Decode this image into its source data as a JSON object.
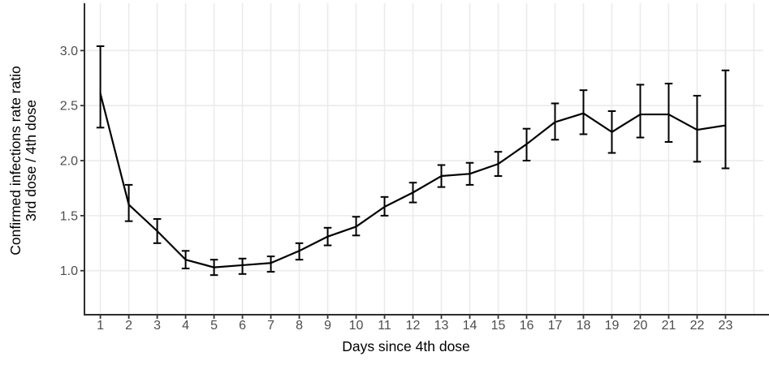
{
  "chart_data": {
    "type": "line",
    "title": "",
    "xlabel": "Days since 4th dose",
    "ylabel_lines": [
      "Confirmed infections rate ratio",
      "3rd dose / 4th dose"
    ],
    "x": [
      1,
      2,
      3,
      4,
      5,
      6,
      7,
      8,
      9,
      10,
      11,
      12,
      13,
      14,
      15,
      16,
      17,
      18,
      19,
      20,
      21,
      22,
      23
    ],
    "x_tick_labels": [
      "1",
      "2",
      "3",
      "4",
      "5",
      "6",
      "7",
      "8",
      "9",
      "10",
      "11",
      "12",
      "13",
      "14",
      "15",
      "16",
      "17",
      "18",
      "19",
      "20",
      "21",
      "22",
      "23"
    ],
    "x_gridlines": [
      1,
      2,
      3,
      4,
      5,
      6,
      7,
      8,
      9,
      10,
      11,
      12,
      13,
      14,
      15,
      16,
      17,
      18,
      19,
      20,
      21,
      22,
      23,
      24
    ],
    "y_tick_values": [
      1.0,
      1.5,
      2.0,
      2.5,
      3.0
    ],
    "y_tick_labels": [
      "1.0",
      "1.5",
      "2.0",
      "2.5",
      "3.0"
    ],
    "xlim": [
      0.44,
      24.33
    ],
    "ylim": [
      0.6,
      3.43
    ],
    "grid": "major",
    "legend": "none",
    "series": [
      {
        "name": "Confirmed infections rate ratio 3rd dose / 4th dose",
        "values": [
          2.61,
          1.6,
          1.36,
          1.1,
          1.03,
          1.05,
          1.07,
          1.18,
          1.31,
          1.4,
          1.58,
          1.71,
          1.86,
          1.88,
          1.97,
          2.15,
          2.35,
          2.43,
          2.26,
          2.42,
          2.42,
          2.28,
          2.32
        ],
        "ci_low": [
          2.3,
          1.45,
          1.25,
          1.02,
          0.96,
          0.97,
          0.99,
          1.1,
          1.23,
          1.32,
          1.5,
          1.62,
          1.76,
          1.78,
          1.86,
          2.0,
          2.19,
          2.24,
          2.07,
          2.21,
          2.17,
          1.99,
          1.93
        ],
        "ci_high": [
          3.04,
          1.78,
          1.47,
          1.18,
          1.1,
          1.11,
          1.13,
          1.25,
          1.39,
          1.49,
          1.67,
          1.8,
          1.96,
          1.98,
          2.08,
          2.29,
          2.52,
          2.64,
          2.45,
          2.69,
          2.7,
          2.59,
          2.82
        ]
      }
    ],
    "colors": {
      "line": "#000000",
      "error_bar": "#000000",
      "grid": "#ebebeb",
      "axis_line": "#2e2e2e",
      "tick_mark": "#333333",
      "tick_text": "#4d4d4d",
      "title_text": "#000000",
      "background": "#ffffff"
    }
  }
}
